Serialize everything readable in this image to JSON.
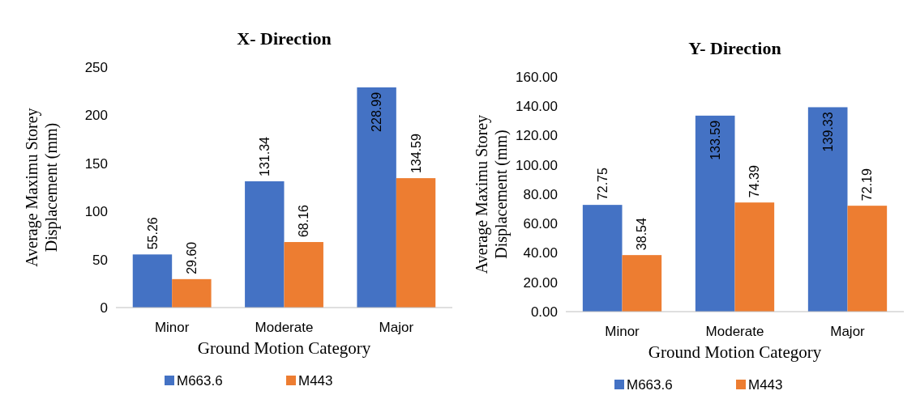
{
  "chart_data": [
    {
      "type": "bar",
      "title": "X- Direction",
      "xlabel": "Ground Motion Category",
      "ylabel": "Average Maximu  Storey\nDisplacement (mm)",
      "categories": [
        "Minor",
        "Moderate",
        "Major"
      ],
      "series": [
        {
          "name": "M663.6",
          "color": "#4472c4",
          "values": [
            55.26,
            131.34,
            228.99
          ]
        },
        {
          "name": "M443",
          "color": "#ed7d31",
          "values": [
            29.6,
            68.16,
            134.59
          ]
        }
      ],
      "value_labels": [
        [
          "55.26",
          "131.34",
          "228.99"
        ],
        [
          "29.60",
          "68.16",
          "134.59"
        ]
      ],
      "ylim": [
        0,
        250
      ],
      "yticks": [
        0,
        50,
        100,
        150,
        200,
        250
      ],
      "grid": false,
      "legend": "bottom"
    },
    {
      "type": "bar",
      "title": "Y- Direction",
      "xlabel": "Ground Motion Category",
      "ylabel": "Average Maximu  Storey\nDisplacement (mm)",
      "categories": [
        "Minor",
        "Moderate",
        "Major"
      ],
      "series": [
        {
          "name": "M663.6",
          "color": "#4472c4",
          "values": [
            72.75,
            133.59,
            139.33
          ]
        },
        {
          "name": "M443",
          "color": "#ed7d31",
          "values": [
            38.54,
            74.39,
            72.19
          ]
        }
      ],
      "value_labels": [
        [
          "72.75",
          "133.59",
          "139.33"
        ],
        [
          "38.54",
          "74.39",
          "72.19"
        ]
      ],
      "ylim": [
        0,
        160
      ],
      "yticks": [
        {
          "value": 0,
          "label": "0.00"
        },
        {
          "value": 20,
          "label": "20.00"
        },
        {
          "value": 40,
          "label": "40.00"
        },
        {
          "value": 60,
          "label": "60.00"
        },
        {
          "value": 80,
          "label": "80.00"
        },
        {
          "value": 100,
          "label": "100.00"
        },
        {
          "value": 120,
          "label": "120.00"
        },
        {
          "value": 140,
          "label": "140.00"
        },
        {
          "value": 160,
          "label": "160.00"
        }
      ],
      "grid": false,
      "legend": "bottom"
    }
  ]
}
